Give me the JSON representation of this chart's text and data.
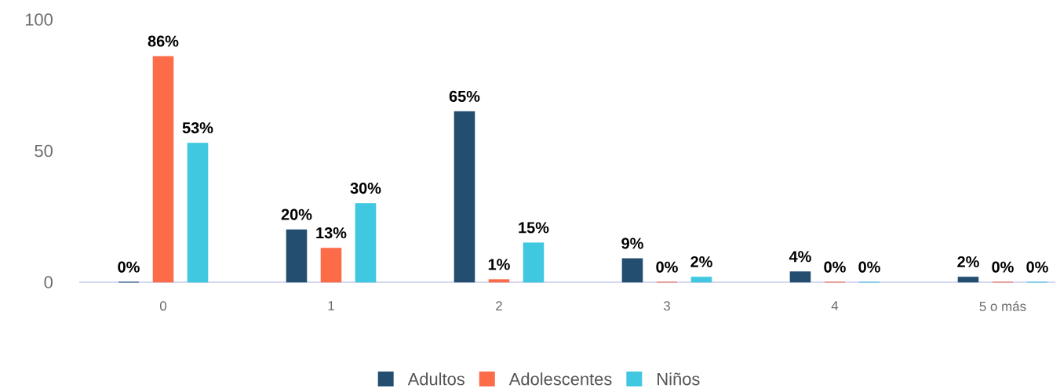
{
  "chart_data": {
    "type": "bar",
    "categories": [
      "0",
      "1",
      "2",
      "3",
      "4",
      "5 o más"
    ],
    "series": [
      {
        "name": "Adultos",
        "color": "#234e70",
        "values": [
          0,
          20,
          65,
          9,
          4,
          2
        ],
        "value_labels": [
          "0%",
          "20%",
          "65%",
          "9%",
          "4%",
          "2%"
        ]
      },
      {
        "name": "Adolescentes",
        "color": "#fd6c49",
        "values": [
          86,
          13,
          1,
          0,
          0,
          0
        ],
        "value_labels": [
          "86%",
          "13%",
          "1%",
          "0%",
          "0%",
          "0%"
        ]
      },
      {
        "name": "Niños",
        "color": "#40c8e0",
        "values": [
          53,
          30,
          15,
          2,
          0,
          0
        ],
        "value_labels": [
          "53%",
          "30%",
          "15%",
          "2%",
          "0%",
          "0%"
        ]
      }
    ],
    "ylim": [
      0,
      100
    ],
    "yticks": [
      0,
      50,
      100
    ],
    "legend": "bottom"
  }
}
